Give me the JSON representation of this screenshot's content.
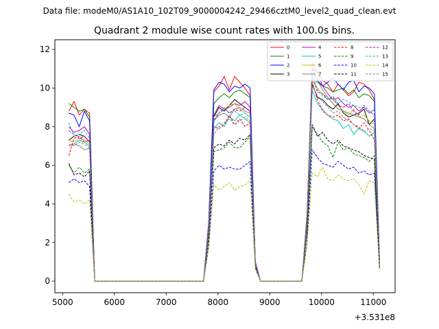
{
  "chart_data": {
    "type": "line",
    "suptitle": "Data file: modeM0/AS1A10_102T09_9000004242_29466cztM0_level2_quad_clean.evt",
    "title": "Quadrant 2 module wise count rates with 100.0s bins.",
    "xlabel": "",
    "ylabel": "",
    "x_offset_label": "+3.531e8",
    "xlim": [
      4850,
      11420
    ],
    "ylim": [
      -0.6,
      12.5
    ],
    "x_ticks": [
      5000,
      6000,
      7000,
      8000,
      9000,
      10000,
      11000
    ],
    "x_tick_labels": [
      "5000",
      "6000",
      "7000",
      "8000",
      "9000",
      "10000",
      "11000"
    ],
    "y_ticks": [
      0,
      2,
      4,
      6,
      8,
      10,
      12
    ],
    "y_tick_labels": [
      "0",
      "2",
      "4",
      "6",
      "8",
      "10",
      "12"
    ],
    "x": [
      5120,
      5220,
      5320,
      5420,
      5520,
      5620,
      5720,
      7720,
      7820,
      7920,
      8020,
      8120,
      8220,
      8320,
      8420,
      8520,
      8620,
      8720,
      8820,
      9620,
      9720,
      9820,
      9920,
      10020,
      10120,
      10220,
      10320,
      10420,
      10520,
      10620,
      10720,
      10820,
      10920,
      11020,
      11120
    ],
    "series": [
      {
        "name": "0",
        "color": "#ff0000",
        "dash": "solid",
        "values": [
          8.8,
          9.3,
          8.6,
          8.9,
          8.7,
          0,
          0,
          0,
          3.0,
          9.8,
          10.1,
          10.6,
          9.9,
          10.6,
          10.3,
          10.0,
          9.6,
          1.0,
          0,
          0,
          3.5,
          11.3,
          10.8,
          10.4,
          10.2,
          9.8,
          10.2,
          9.9,
          9.6,
          9.8,
          10.3,
          10.2,
          9.9,
          9.4,
          1.0
        ]
      },
      {
        "name": "1",
        "color": "#008000",
        "dash": "solid",
        "values": [
          9.2,
          9.0,
          8.8,
          8.9,
          8.5,
          0,
          0,
          0,
          3.0,
          9.2,
          9.5,
          9.7,
          9.5,
          9.8,
          9.9,
          9.7,
          9.5,
          1.0,
          0,
          0,
          3.4,
          10.5,
          10.3,
          10.1,
          10.0,
          9.8,
          9.9,
          10.0,
          9.7,
          9.9,
          9.5,
          9.7,
          9.6,
          9.3,
          1.0
        ]
      },
      {
        "name": "2",
        "color": "#0000ff",
        "dash": "solid",
        "values": [
          8.7,
          8.6,
          8.0,
          8.8,
          8.3,
          0,
          0,
          0,
          3.0,
          9.9,
          10.3,
          10.2,
          9.8,
          10.1,
          10.0,
          10.2,
          10.0,
          1.0,
          0,
          0,
          3.4,
          11.0,
          10.4,
          10.1,
          10.3,
          10.5,
          10.2,
          9.9,
          10.3,
          10.4,
          9.8,
          10.1,
          10.0,
          9.7,
          1.0
        ]
      },
      {
        "name": "3",
        "color": "#000000",
        "dash": "solid",
        "values": [
          7.3,
          7.5,
          7.6,
          7.5,
          7.2,
          0,
          0,
          0,
          2.8,
          8.5,
          9.0,
          8.8,
          9.1,
          9.4,
          9.2,
          9.0,
          8.8,
          0.9,
          0,
          0,
          3.1,
          10.2,
          9.5,
          9.4,
          9.1,
          8.9,
          9.2,
          8.7,
          8.5,
          8.6,
          8.7,
          8.9,
          8.1,
          8.4,
          0.9
        ]
      },
      {
        "name": "4",
        "color": "#bf00bf",
        "dash": "solid",
        "values": [
          8.0,
          7.7,
          7.8,
          8.0,
          7.6,
          0,
          0,
          0,
          2.9,
          8.6,
          9.1,
          8.9,
          9.0,
          9.2,
          9.1,
          9.3,
          9.0,
          1.0,
          0,
          0,
          3.3,
          11.0,
          10.8,
          10.1,
          9.7,
          9.4,
          9.5,
          9.2,
          9.0,
          9.1,
          8.8,
          9.0,
          8.7,
          8.9,
          0.9
        ]
      },
      {
        "name": "5",
        "color": "#00bfbf",
        "dash": "solid",
        "values": [
          7.0,
          7.1,
          7.3,
          7.2,
          7.0,
          0,
          0,
          0,
          2.6,
          7.9,
          8.2,
          8.0,
          8.5,
          8.3,
          8.6,
          8.4,
          8.2,
          0.9,
          0,
          0,
          2.9,
          9.9,
          9.2,
          8.9,
          8.6,
          8.4,
          8.3,
          7.9,
          8.1,
          7.6,
          7.9,
          7.8,
          7.5,
          7.7,
          0.8
        ]
      },
      {
        "name": "6",
        "color": "#bfbf00",
        "dash": "solid",
        "values": [
          7.3,
          7.2,
          7.4,
          7.3,
          7.1,
          0,
          0,
          0,
          2.8,
          8.3,
          8.7,
          8.9,
          9.1,
          9.2,
          8.9,
          8.7,
          8.5,
          0.9,
          0,
          0,
          3.2,
          10.4,
          10.0,
          9.7,
          9.5,
          9.4,
          9.1,
          8.8,
          8.6,
          8.9,
          8.5,
          8.6,
          8.3,
          8.1,
          0.9
        ]
      },
      {
        "name": "7",
        "color": "#808080",
        "dash": "solid",
        "values": [
          7.0,
          7.1,
          7.0,
          6.8,
          6.9,
          0,
          0,
          0,
          2.7,
          8.3,
          8.6,
          8.7,
          8.5,
          8.9,
          9.0,
          8.8,
          8.7,
          0.9,
          0,
          0,
          3.3,
          10.8,
          10.4,
          9.9,
          9.5,
          9.2,
          8.9,
          8.8,
          8.7,
          8.6,
          8.5,
          8.4,
          8.1,
          7.9,
          0.9
        ]
      },
      {
        "name": "8",
        "color": "#ff0000",
        "dash": "dashed",
        "values": [
          6.5,
          7.4,
          7.5,
          7.2,
          7.3,
          0,
          0,
          0,
          2.6,
          8.0,
          7.9,
          8.1,
          8.6,
          8.1,
          8.4,
          8.0,
          8.2,
          0.9,
          0,
          0,
          3.1,
          10.3,
          9.4,
          8.8,
          8.6,
          8.5,
          8.6,
          8.3,
          8.4,
          8.1,
          7.9,
          8.2,
          7.8,
          7.3,
          0.8
        ]
      },
      {
        "name": "9",
        "color": "#008000",
        "dash": "dashed",
        "values": [
          6.0,
          5.6,
          5.9,
          5.6,
          5.8,
          0,
          0,
          0,
          2.2,
          6.7,
          6.8,
          6.9,
          7.2,
          6.9,
          6.9,
          7.2,
          7.5,
          0.8,
          0,
          0,
          2.6,
          8.0,
          7.6,
          7.2,
          7.0,
          6.4,
          7.2,
          6.8,
          6.9,
          6.6,
          6.5,
          6.4,
          6.2,
          6.5,
          0.7
        ]
      },
      {
        "name": "10",
        "color": "#0000ff",
        "dash": "dashed",
        "values": [
          5.1,
          5.3,
          5.1,
          5.2,
          4.9,
          0,
          0,
          0,
          1.8,
          5.7,
          6.0,
          5.8,
          5.9,
          5.8,
          5.8,
          6.0,
          6.2,
          0.7,
          0,
          0,
          2.0,
          6.8,
          6.4,
          6.1,
          6.0,
          5.9,
          6.2,
          6.0,
          5.8,
          5.9,
          5.6,
          5.7,
          5.5,
          5.6,
          0.6
        ]
      },
      {
        "name": "11",
        "color": "#000000",
        "dash": "dashed",
        "values": [
          6.1,
          5.5,
          5.6,
          5.4,
          5.7,
          0,
          0,
          0,
          2.3,
          6.9,
          7.1,
          7.0,
          7.3,
          7.1,
          7.4,
          7.3,
          7.6,
          0.8,
          0,
          0,
          2.6,
          8.1,
          7.5,
          7.7,
          7.3,
          7.1,
          7.3,
          7.0,
          6.9,
          6.8,
          6.7,
          6.5,
          6.4,
          6.3,
          0.7
        ]
      },
      {
        "name": "12",
        "color": "#bf00bf",
        "dash": "dashed",
        "values": [
          7.8,
          7.6,
          7.4,
          7.5,
          7.2,
          0,
          0,
          0,
          2.8,
          8.3,
          8.7,
          8.9,
          8.7,
          8.9,
          8.8,
          9.0,
          8.8,
          1.0,
          0,
          0,
          3.2,
          10.6,
          9.8,
          9.7,
          9.4,
          9.5,
          9.1,
          9.0,
          9.2,
          8.8,
          8.6,
          9.1,
          8.8,
          8.6,
          0.9
        ]
      },
      {
        "name": "13",
        "color": "#00bfbf",
        "dash": "dashed",
        "values": [
          8.2,
          7.5,
          7.6,
          7.8,
          7.4,
          0,
          0,
          0,
          2.7,
          8.5,
          8.7,
          9.0,
          8.7,
          8.8,
          8.6,
          8.7,
          8.5,
          0.9,
          0,
          0,
          3.1,
          10.7,
          9.9,
          9.6,
          9.4,
          9.6,
          9.2,
          9.4,
          9.3,
          9.1,
          9.0,
          9.0,
          8.7,
          8.9,
          0.9
        ]
      },
      {
        "name": "14",
        "color": "#bfbf00",
        "dash": "dashed",
        "values": [
          4.5,
          4.1,
          4.2,
          4.0,
          4.2,
          0,
          0,
          0,
          1.7,
          5.0,
          4.7,
          4.9,
          5.1,
          4.7,
          4.9,
          5.0,
          5.2,
          0.6,
          0,
          0,
          1.9,
          5.6,
          5.4,
          5.9,
          5.3,
          5.2,
          5.5,
          5.3,
          5.2,
          5.3,
          5.0,
          4.5,
          5.2,
          5.1,
          0.5
        ]
      },
      {
        "name": "15",
        "color": "#808080",
        "dash": "dashed",
        "values": [
          7.1,
          7.0,
          7.2,
          7.1,
          6.9,
          0,
          0,
          0,
          2.6,
          7.6,
          8.0,
          8.2,
          8.4,
          8.1,
          8.3,
          8.5,
          8.3,
          0.9,
          0,
          0,
          3.0,
          10.1,
          9.6,
          9.3,
          9.0,
          8.7,
          8.8,
          8.5,
          8.3,
          8.1,
          8.0,
          7.7,
          7.9,
          7.8,
          0.8
        ]
      }
    ],
    "legend_position": "upper-right",
    "legend_columns": 4
  }
}
